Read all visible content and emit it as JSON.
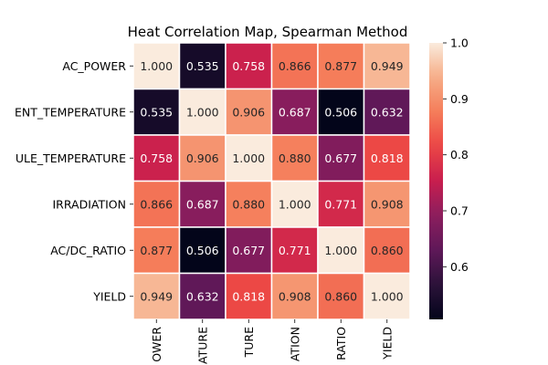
{
  "chart_data": {
    "type": "heatmap",
    "title": "Heat Correlation Map, Spearman Method",
    "row_labels": [
      "AC_POWER",
      "AMBIENT_TEMPERATURE",
      "MODULE_TEMPERATURE",
      "IRRADIATION",
      "AC/DC_RATIO",
      "YIELD"
    ],
    "row_labels_visible": [
      "AC_POWER",
      "ENT_TEMPERATURE",
      "ULE_TEMPERATURE",
      "IRRADIATION",
      "AC/DC_RATIO",
      "YIELD"
    ],
    "col_labels_visible": [
      "OWER",
      "ATURE",
      "TURE",
      "ATION",
      "RATIO",
      "YIELD"
    ],
    "values": [
      [
        1.0,
        0.535,
        0.758,
        0.866,
        0.877,
        0.949
      ],
      [
        0.535,
        1.0,
        0.906,
        0.687,
        0.506,
        0.632
      ],
      [
        0.758,
        0.906,
        1.0,
        0.88,
        0.677,
        0.818
      ],
      [
        0.866,
        0.687,
        0.88,
        1.0,
        0.771,
        0.908
      ],
      [
        0.877,
        0.506,
        0.677,
        0.771,
        1.0,
        0.86
      ],
      [
        0.949,
        0.632,
        0.818,
        0.908,
        0.86,
        1.0
      ]
    ],
    "value_format": "0.000",
    "colormap": "rocket",
    "vmin": 0.506,
    "vmax": 1.0,
    "colorbar_ticks": [
      0.6,
      0.7,
      0.8,
      0.9,
      1.0
    ],
    "colorbar_tick_labels": [
      "0.6",
      "0.7",
      "0.8",
      "0.9",
      "1.0"
    ],
    "cell_border_color": "#ffffff"
  }
}
